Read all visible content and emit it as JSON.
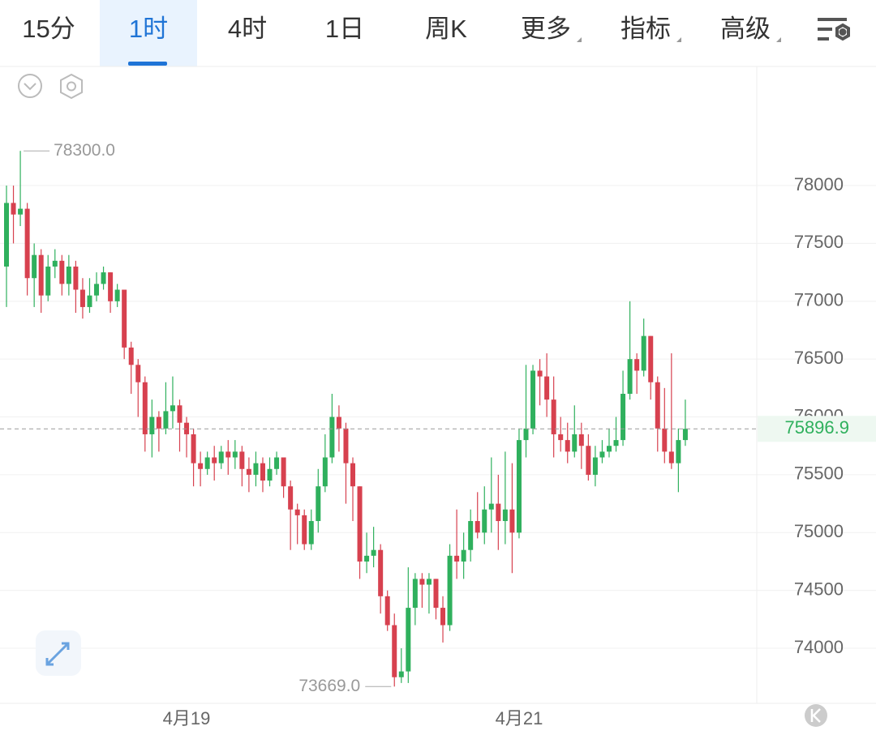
{
  "tabs": [
    "15分",
    "1时",
    "4时",
    "1日",
    "周K",
    "更多",
    "指标",
    "高级"
  ],
  "chart_data": {
    "type": "candlestick",
    "categories": [
      null,
      null,
      null,
      null,
      null,
      null,
      null,
      null,
      null,
      null,
      null,
      null,
      null,
      null,
      null,
      null,
      null,
      null,
      null,
      null,
      null,
      null,
      null,
      null,
      null,
      null,
      "4月19",
      null,
      null,
      null,
      null,
      null,
      null,
      null,
      null,
      null,
      null,
      null,
      null,
      null,
      null,
      null,
      null,
      null,
      null,
      null,
      null,
      null,
      null,
      null,
      null,
      null,
      null,
      null,
      null,
      null,
      null,
      null,
      null,
      null,
      null,
      null,
      null,
      null,
      null,
      null,
      null,
      null,
      null,
      null,
      null,
      null,
      null,
      null,
      "4月21",
      null,
      null,
      null,
      null,
      null,
      null,
      null,
      null,
      null,
      null,
      null,
      null,
      null,
      null,
      null,
      null,
      null,
      null,
      null,
      null,
      null,
      null,
      null,
      null
    ],
    "open": [
      77300,
      77850,
      77750,
      77800,
      77200,
      77400,
      77050,
      77300,
      77350,
      77150,
      77300,
      77100,
      76950,
      77050,
      77150,
      77250,
      77000,
      77100,
      76600,
      76450,
      76300,
      75850,
      76000,
      75900,
      76050,
      76100,
      75950,
      75850,
      75600,
      75550,
      75650,
      75600,
      75700,
      75650,
      75700,
      75550,
      75500,
      75600,
      75450,
      75550,
      75650,
      75400,
      75200,
      75150,
      74900,
      75100,
      75400,
      75650,
      76000,
      75900,
      75600,
      75400,
      74750,
      74800,
      74850,
      74450,
      74200,
      73750,
      73800,
      74350,
      74600,
      74550,
      74600,
      74350,
      74200,
      74800,
      74750,
      74850,
      75100,
      75000,
      75200,
      75250,
      75100,
      75200,
      75000,
      75800,
      75900,
      76400,
      76350,
      76150,
      75850,
      75800,
      75700,
      75850,
      75750,
      75500,
      75650,
      75700,
      75750,
      75800,
      76200,
      76500,
      76400,
      76700,
      76300,
      75900,
      75700,
      75600,
      75800
    ],
    "high": [
      78000,
      78000,
      78300,
      77850,
      77500,
      77450,
      77400,
      77450,
      77400,
      77400,
      77350,
      77200,
      77200,
      77250,
      77300,
      77250,
      77150,
      77100,
      76650,
      76500,
      76350,
      76150,
      76050,
      76300,
      76350,
      76150,
      76000,
      75900,
      75700,
      75700,
      75750,
      75750,
      75800,
      75800,
      75750,
      75650,
      75700,
      75650,
      75650,
      75700,
      75650,
      75450,
      75250,
      75200,
      75200,
      75550,
      75850,
      76200,
      76100,
      75950,
      75650,
      75400,
      75000,
      75050,
      74900,
      74500,
      74300,
      74000,
      74700,
      74650,
      74650,
      74650,
      74600,
      74450,
      74900,
      75200,
      75000,
      75200,
      75350,
      75400,
      75650,
      75500,
      75700,
      75600,
      75900,
      76450,
      76450,
      76500,
      76550,
      76350,
      76000,
      75950,
      76100,
      75950,
      75850,
      75750,
      75800,
      75900,
      76000,
      76400,
      77000,
      76550,
      76850,
      76700,
      76350,
      76250,
      76550,
      75900,
      76150
    ],
    "low": [
      76950,
      77500,
      77650,
      77050,
      76950,
      76900,
      77000,
      77200,
      77050,
      77050,
      76900,
      76850,
      76900,
      77000,
      77100,
      76900,
      76950,
      76500,
      76200,
      76000,
      75700,
      75650,
      75700,
      75850,
      75900,
      75700,
      75650,
      75400,
      75400,
      75500,
      75450,
      75550,
      75500,
      75550,
      75400,
      75350,
      75400,
      75350,
      75400,
      75500,
      75300,
      74850,
      74900,
      74850,
      74850,
      75000,
      75350,
      75600,
      75700,
      75250,
      75100,
      74600,
      74650,
      74700,
      74300,
      74150,
      73669,
      73700,
      73700,
      74200,
      74350,
      74300,
      74250,
      74050,
      74150,
      74600,
      74600,
      74750,
      74950,
      74900,
      75000,
      74850,
      74900,
      74650,
      74950,
      75650,
      75850,
      76100,
      76000,
      75650,
      75700,
      75600,
      75650,
      75550,
      75450,
      75400,
      75600,
      75650,
      75700,
      75750,
      76150,
      76200,
      76350,
      76150,
      75700,
      75600,
      75550,
      75350,
      75750
    ],
    "close": [
      77850,
      77750,
      77800,
      77200,
      77400,
      77050,
      77300,
      77350,
      77150,
      77300,
      77100,
      76950,
      77050,
      77150,
      77250,
      77000,
      77100,
      76600,
      76450,
      76300,
      75850,
      76000,
      75900,
      76050,
      76100,
      75950,
      75850,
      75600,
      75550,
      75650,
      75600,
      75700,
      75650,
      75700,
      75550,
      75500,
      75600,
      75450,
      75550,
      75650,
      75400,
      75200,
      75150,
      74900,
      75100,
      75400,
      75650,
      76000,
      75900,
      75600,
      75400,
      74750,
      74800,
      74850,
      74450,
      74200,
      73750,
      73800,
      74350,
      74600,
      74550,
      74600,
      74350,
      74200,
      74800,
      74750,
      74850,
      75100,
      75000,
      75200,
      75250,
      75100,
      75200,
      75000,
      75800,
      75900,
      76400,
      76350,
      76150,
      75850,
      75800,
      75700,
      75850,
      75750,
      75500,
      75650,
      75700,
      75750,
      75800,
      76200,
      76500,
      76400,
      76700,
      76300,
      75900,
      75700,
      75600,
      75800,
      75896.9
    ],
    "up_color": "#2fb05d",
    "down_color": "#d7414f",
    "ylim": [
      73524,
      79030
    ],
    "yticks": [
      74000,
      74500,
      75000,
      75500,
      76000,
      76500,
      77000,
      77500,
      78000
    ],
    "grid": true,
    "high_annotation": {
      "value": 78300,
      "label": "78300.0"
    },
    "low_annotation": {
      "value": 73669,
      "label": "73669.0"
    },
    "last_price": 75896.9
  }
}
